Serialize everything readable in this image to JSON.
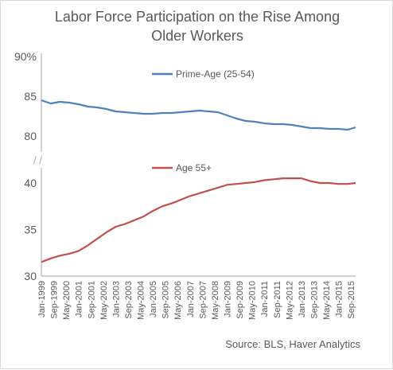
{
  "title_line1": "Labor Force Participation on the Rise Among",
  "title_line2": "Older Workers",
  "source": "Source: BLS, Haver Analytics",
  "axis_break_mark": "/ /",
  "colors": {
    "prime": "#4f81bd",
    "older": "#c0504d",
    "axis": "#a6a6a6",
    "text": "#595959"
  },
  "chart_data": [
    {
      "type": "line",
      "series": [
        {
          "name": "Prime-Age (25-54)",
          "color": "#4f81bd"
        }
      ],
      "ylim": [
        80,
        90
      ],
      "yticks": [
        "90%",
        "85",
        "80"
      ],
      "legend": "top-center",
      "x": [
        "1999-01",
        "1999-07",
        "2000-01",
        "2000-07",
        "2001-01",
        "2001-07",
        "2002-01",
        "2002-07",
        "2003-01",
        "2003-07",
        "2004-01",
        "2004-07",
        "2005-01",
        "2005-07",
        "2006-01",
        "2006-07",
        "2007-01",
        "2007-07",
        "2008-01",
        "2008-07",
        "2009-01",
        "2009-07",
        "2010-01",
        "2010-07",
        "2011-01",
        "2011-07",
        "2012-01",
        "2012-07",
        "2013-01",
        "2013-07",
        "2014-01",
        "2014-07",
        "2015-01",
        "2015-07",
        "2015-12"
      ],
      "values": [
        84.5,
        84.1,
        84.3,
        84.2,
        84.0,
        83.7,
        83.6,
        83.4,
        83.1,
        83.0,
        82.9,
        82.8,
        82.8,
        82.9,
        82.9,
        83.0,
        83.1,
        83.2,
        83.1,
        83.0,
        82.6,
        82.2,
        81.9,
        81.8,
        81.6,
        81.5,
        81.5,
        81.4,
        81.2,
        81.0,
        81.0,
        80.9,
        80.9,
        80.8,
        81.1
      ]
    },
    {
      "type": "line",
      "series": [
        {
          "name": "Age 55+",
          "color": "#c0504d"
        }
      ],
      "ylim": [
        30,
        40
      ],
      "yticks": [
        "40",
        "35",
        "30"
      ],
      "legend": "top-center",
      "x": [
        "1999-01",
        "1999-07",
        "2000-01",
        "2000-07",
        "2001-01",
        "2001-07",
        "2002-01",
        "2002-07",
        "2003-01",
        "2003-07",
        "2004-01",
        "2004-07",
        "2005-01",
        "2005-07",
        "2006-01",
        "2006-07",
        "2007-01",
        "2007-07",
        "2008-01",
        "2008-07",
        "2009-01",
        "2009-07",
        "2010-01",
        "2010-07",
        "2011-01",
        "2011-07",
        "2012-01",
        "2012-07",
        "2013-01",
        "2013-07",
        "2014-01",
        "2014-07",
        "2015-01",
        "2015-07",
        "2015-12"
      ],
      "values": [
        31.5,
        31.9,
        32.2,
        32.4,
        32.7,
        33.3,
        34.0,
        34.7,
        35.3,
        35.6,
        36.0,
        36.4,
        37.0,
        37.5,
        37.8,
        38.2,
        38.6,
        38.9,
        39.2,
        39.5,
        39.8,
        39.9,
        40.0,
        40.1,
        40.3,
        40.4,
        40.5,
        40.5,
        40.5,
        40.2,
        40.0,
        40.0,
        39.9,
        39.9,
        40.0
      ]
    }
  ],
  "x_tick_labels": [
    "Jan-1999",
    "Sep-1999",
    "May-2000",
    "Jan-2001",
    "Sep-2001",
    "May-2002",
    "Jan-2003",
    "Sep-2003",
    "May-2004",
    "Jan-2005",
    "Sep-2005",
    "May-2006",
    "Jan-2007",
    "Sep-2007",
    "May-2008",
    "Jan-2009",
    "Sep-2009",
    "May-2010",
    "Jan-2011",
    "Sep-2011",
    "May-2012",
    "Jan-2013",
    "Sep-2013",
    "May-2014",
    "Jan-2015",
    "Sep-2015"
  ]
}
